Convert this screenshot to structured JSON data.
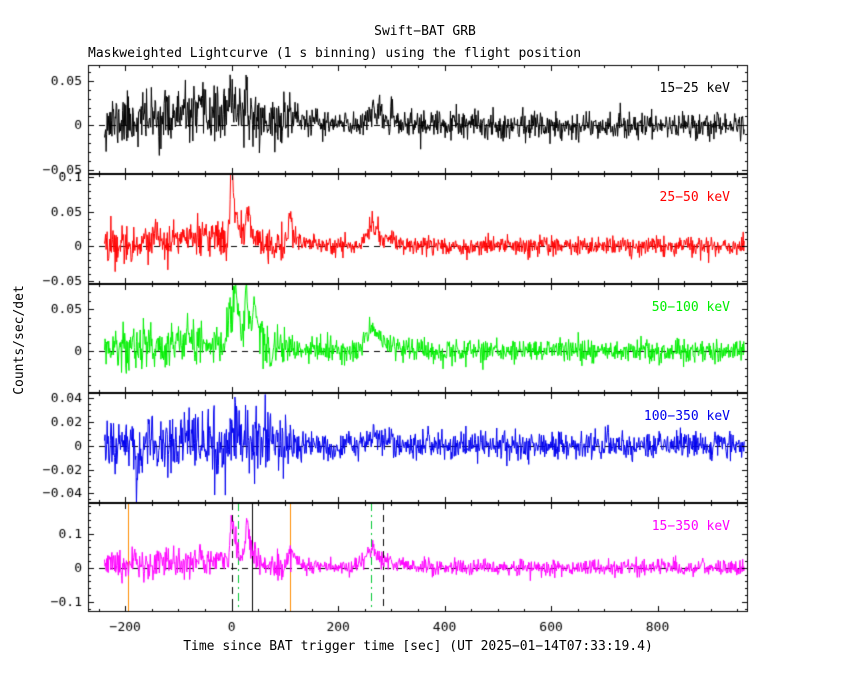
{
  "chart_data": {
    "type": "line",
    "title": "Swift−BAT GRB",
    "subtitle": "Maskweighted Lightcurve (1 s binning) using the flight position",
    "xlabel": "Time since BAT trigger time [sec] (UT 2025−01−14T07:33:19.4)",
    "ylabel": "Counts/sec/det",
    "x_range": [
      -270,
      970
    ],
    "x_ticks": [
      -200,
      0,
      200,
      400,
      600,
      800
    ],
    "x_tick_labels": [
      "−200",
      "0",
      "200",
      "400",
      "600",
      "800"
    ],
    "x_minor_step": 50,
    "time_start": -239,
    "time_end": 963,
    "bin_sec": 1,
    "grid": false,
    "legend_position": "inside-top-right-per-panel",
    "zero_line": {
      "style": "dashed",
      "color": "#000000"
    },
    "panels": [
      {
        "label": "15−25 keV",
        "color": "#000000",
        "ylim": [
          -0.055,
          0.068
        ],
        "yticks": [
          {
            "value": 0.05,
            "label": "0.05"
          },
          {
            "value": 0,
            "label": "0"
          },
          {
            "value": -0.05,
            "label": "−0.05"
          }
        ],
        "y_minor_step": 0.01,
        "noise": {
          "sigma_early": 0.015,
          "sigma_late": 0.008,
          "early_until": 115
        },
        "pulses": [
          {
            "t0": -30,
            "amp": 0.012,
            "rise": 130,
            "decay": 80
          },
          {
            "t0": 2,
            "amp": 0.02,
            "rise": 6,
            "decay": 25
          },
          {
            "t0": 110,
            "amp": 0.015,
            "rise": 5,
            "decay": 15
          },
          {
            "t0": 265,
            "amp": 0.016,
            "rise": 12,
            "decay": 28
          }
        ],
        "seed": 11
      },
      {
        "label": "25−50 keV",
        "color": "#ff0000",
        "ylim": [
          -0.055,
          0.105
        ],
        "yticks": [
          {
            "value": 0.1,
            "label": "0.1"
          },
          {
            "value": 0.05,
            "label": "0.05"
          },
          {
            "value": 0,
            "label": "0"
          },
          {
            "value": -0.05,
            "label": "−0.05"
          }
        ],
        "y_minor_step": 0.01,
        "noise": {
          "sigma_early": 0.013,
          "sigma_late": 0.007,
          "early_until": 115
        },
        "pulses": [
          {
            "t0": -30,
            "amp": 0.012,
            "rise": 120,
            "decay": 70
          },
          {
            "t0": 0,
            "amp": 0.105,
            "rise": 3,
            "decay": 8
          },
          {
            "t0": 30,
            "amp": 0.045,
            "rise": 4,
            "decay": 10
          },
          {
            "t0": 110,
            "amp": 0.03,
            "rise": 4,
            "decay": 12
          },
          {
            "t0": 265,
            "amp": 0.028,
            "rise": 12,
            "decay": 28
          }
        ],
        "seed": 22
      },
      {
        "label": "50−100 keV",
        "color": "#00ee00",
        "ylim": [
          -0.05,
          0.08
        ],
        "yticks": [
          {
            "value": 0.05,
            "label": "0.05"
          },
          {
            "value": 0,
            "label": "0"
          }
        ],
        "y_minor_step": 0.01,
        "noise": {
          "sigma_early": 0.013,
          "sigma_late": 0.007,
          "early_until": 115
        },
        "pulses": [
          {
            "t0": -40,
            "amp": 0.01,
            "rise": 110,
            "decay": 70
          },
          {
            "t0": -3,
            "amp": 0.05,
            "rise": 4,
            "decay": 6
          },
          {
            "t0": 7,
            "amp": 0.072,
            "rise": 3,
            "decay": 8
          },
          {
            "t0": 28,
            "amp": 0.075,
            "rise": 3,
            "decay": 7
          },
          {
            "t0": 44,
            "amp": 0.045,
            "rise": 3,
            "decay": 9
          },
          {
            "t0": 265,
            "amp": 0.026,
            "rise": 12,
            "decay": 26
          }
        ],
        "seed": 33
      },
      {
        "label": "100−350 keV",
        "color": "#0000ee",
        "ylim": [
          -0.048,
          0.044
        ],
        "yticks": [
          {
            "value": 0.04,
            "label": "0.04"
          },
          {
            "value": 0.02,
            "label": "0.02"
          },
          {
            "value": 0,
            "label": "0"
          },
          {
            "value": -0.02,
            "label": "−0.02"
          },
          {
            "value": -0.04,
            "label": "−0.04"
          }
        ],
        "y_minor_step": 0.005,
        "noise": {
          "sigma_early": 0.013,
          "sigma_late": 0.006,
          "early_until": 115
        },
        "pulses": [
          {
            "t0": -178,
            "amp": -0.03,
            "rise": 1.5,
            "decay": 2.5
          },
          {
            "t0": 5,
            "amp": 0.012,
            "rise": 5,
            "decay": 15
          },
          {
            "t0": 265,
            "amp": 0.007,
            "rise": 12,
            "decay": 25
          }
        ],
        "seed": 44
      },
      {
        "label": "15−350 keV",
        "color": "#ff00ff",
        "ylim": [
          -0.13,
          0.19
        ],
        "yticks": [
          {
            "value": 0.1,
            "label": "0.1"
          },
          {
            "value": 0,
            "label": "0"
          },
          {
            "value": -0.1,
            "label": "−0.1"
          }
        ],
        "y_minor_step": 0.02,
        "noise": {
          "sigma_early": 0.022,
          "sigma_late": 0.012,
          "early_until": 115
        },
        "pulses": [
          {
            "t0": -30,
            "amp": 0.02,
            "rise": 120,
            "decay": 70
          },
          {
            "t0": 0,
            "amp": 0.15,
            "rise": 3,
            "decay": 9
          },
          {
            "t0": 30,
            "amp": 0.12,
            "rise": 4,
            "decay": 10
          },
          {
            "t0": 110,
            "amp": 0.05,
            "rise": 4,
            "decay": 12
          },
          {
            "t0": 265,
            "amp": 0.055,
            "rise": 12,
            "decay": 28
          }
        ],
        "seed": 55
      }
    ],
    "vlines": [
      {
        "t": -195,
        "color": "#ff8c00",
        "style": "solid"
      },
      {
        "t": 0,
        "color": "#000000",
        "style": "dashed"
      },
      {
        "t": 12,
        "color": "#00c832",
        "style": "dashdot"
      },
      {
        "t": 38,
        "color": "#000000",
        "style": "solid"
      },
      {
        "t": 110,
        "color": "#ff8c00",
        "style": "solid"
      },
      {
        "t": 262,
        "color": "#00c832",
        "style": "dashdot"
      },
      {
        "t": 284,
        "color": "#000000",
        "style": "dashed"
      }
    ]
  }
}
